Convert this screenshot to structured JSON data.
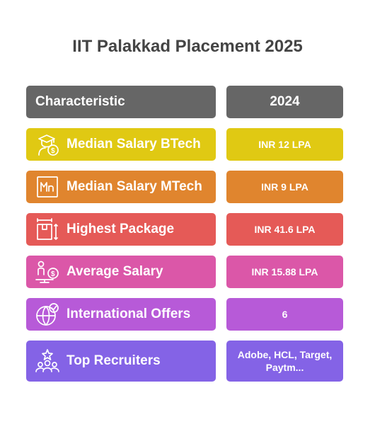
{
  "title": "IIT Palakkad Placement 2025",
  "header": {
    "characteristic": "Characteristic",
    "year": "2024"
  },
  "rows": [
    {
      "label": "Median Salary BTech",
      "value": "INR 12 LPA",
      "color": "#E0C913",
      "icon": "graduate-dollar-icon"
    },
    {
      "label": "Median Salary MTech",
      "value": "INR 9 LPA",
      "color": "#E0852E",
      "icon": "mn-element-icon"
    },
    {
      "label": "Highest Package",
      "value": "INR 41.6 LPA",
      "color": "#E55A57",
      "icon": "box-dimensions-icon"
    },
    {
      "label": "Average Salary",
      "value": "INR 15.88 LPA",
      "color": "#DB57A8",
      "icon": "person-balance-icon"
    },
    {
      "label": "International Offers",
      "value": "6",
      "color": "#B75AD8",
      "icon": "globe-check-icon"
    },
    {
      "label": "Top Recruiters",
      "value": "Adobe, HCL, Target, Paytm...",
      "color": "#8463E6",
      "icon": "team-star-icon"
    }
  ],
  "colors": {
    "header": "#666666",
    "title": "#444444"
  }
}
